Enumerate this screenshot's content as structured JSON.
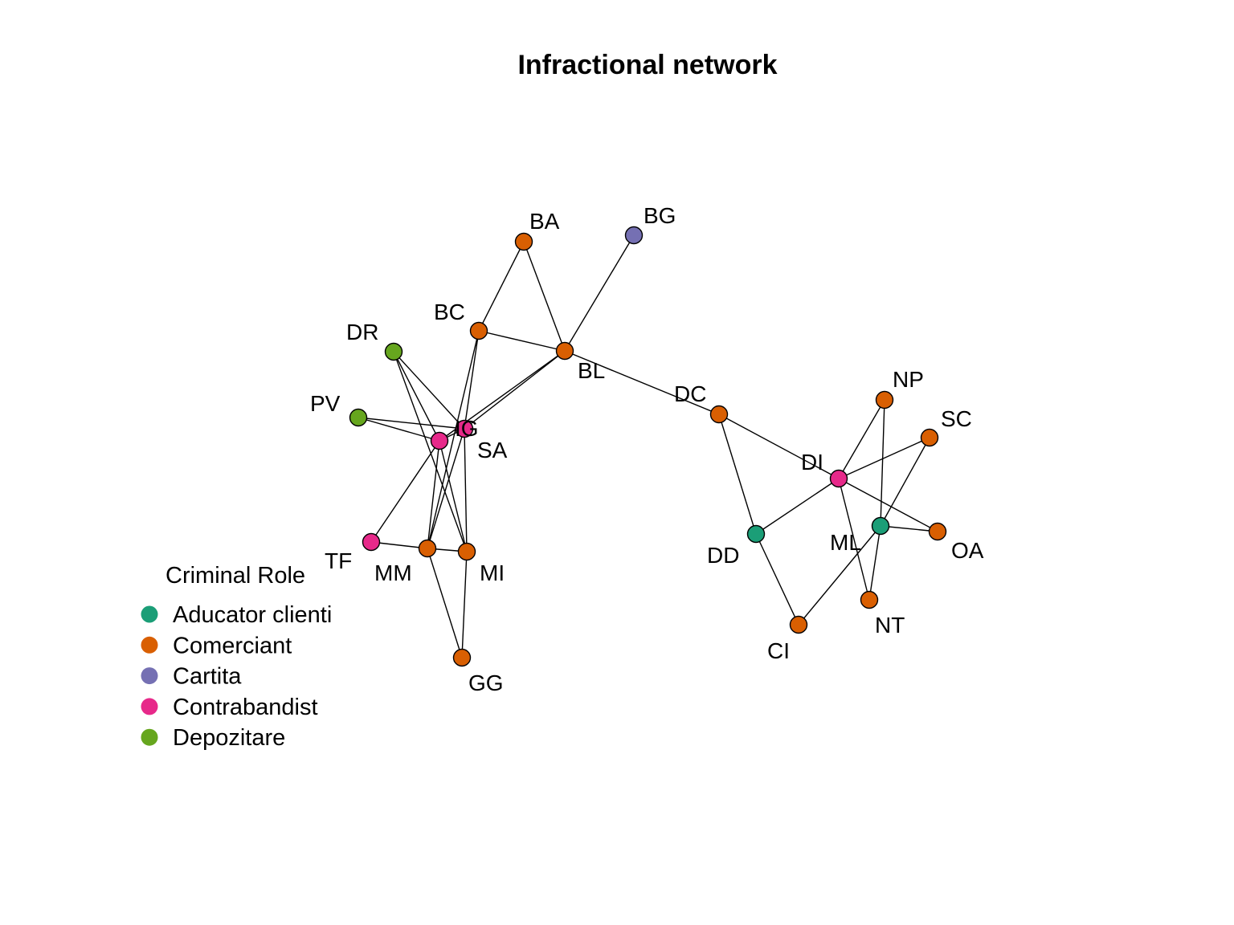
{
  "title": "Infractional network",
  "legend": {
    "title": "Criminal Role",
    "items": [
      {
        "label": "Aducator clienti",
        "color": "#1b9e77"
      },
      {
        "label": "Comerciant",
        "color": "#d95f02"
      },
      {
        "label": "Cartita",
        "color": "#7570b3"
      },
      {
        "label": "Contrabandist",
        "color": "#e7298a"
      },
      {
        "label": "Depozitare",
        "color": "#66a61e"
      }
    ]
  },
  "nodes": [
    {
      "id": "BA",
      "role": "Comerciant"
    },
    {
      "id": "BG",
      "role": "Cartita"
    },
    {
      "id": "BC",
      "role": "Comerciant"
    },
    {
      "id": "BL",
      "role": "Comerciant"
    },
    {
      "id": "DR",
      "role": "Depozitare"
    },
    {
      "id": "PV",
      "role": "Depozitare"
    },
    {
      "id": "IG",
      "role": "Contrabandist"
    },
    {
      "id": "SA",
      "role": "Contrabandist"
    },
    {
      "id": "TF",
      "role": "Contrabandist"
    },
    {
      "id": "MM",
      "role": "Comerciant"
    },
    {
      "id": "MI",
      "role": "Comerciant"
    },
    {
      "id": "GG",
      "role": "Comerciant"
    },
    {
      "id": "DC",
      "role": "Comerciant"
    },
    {
      "id": "DI",
      "role": "Contrabandist"
    },
    {
      "id": "DD",
      "role": "Aducator clienti"
    },
    {
      "id": "CI",
      "role": "Comerciant"
    },
    {
      "id": "ML",
      "role": "Aducator clienti"
    },
    {
      "id": "NP",
      "role": "Comerciant"
    },
    {
      "id": "SC",
      "role": "Comerciant"
    },
    {
      "id": "OA",
      "role": "Comerciant"
    },
    {
      "id": "NT",
      "role": "Comerciant"
    }
  ],
  "edges": [
    [
      "BA",
      "BC"
    ],
    [
      "BA",
      "BL"
    ],
    [
      "BG",
      "BL"
    ],
    [
      "BC",
      "BL"
    ],
    [
      "BC",
      "IG"
    ],
    [
      "BC",
      "MM"
    ],
    [
      "BL",
      "SA"
    ],
    [
      "BL",
      "IG"
    ],
    [
      "BL",
      "DC"
    ],
    [
      "DR",
      "SA"
    ],
    [
      "DR",
      "IG"
    ],
    [
      "DR",
      "MI"
    ],
    [
      "PV",
      "SA"
    ],
    [
      "PV",
      "IG"
    ],
    [
      "SA",
      "IG"
    ],
    [
      "SA",
      "TF"
    ],
    [
      "SA",
      "MM"
    ],
    [
      "SA",
      "MI"
    ],
    [
      "IG",
      "MI"
    ],
    [
      "IG",
      "MM"
    ],
    [
      "TF",
      "MM"
    ],
    [
      "MM",
      "MI"
    ],
    [
      "MM",
      "GG"
    ],
    [
      "MI",
      "GG"
    ],
    [
      "DC",
      "DI"
    ],
    [
      "DC",
      "DD"
    ],
    [
      "DI",
      "DD"
    ],
    [
      "DI",
      "NP"
    ],
    [
      "DI",
      "SC"
    ],
    [
      "DI",
      "OA"
    ],
    [
      "DI",
      "NT"
    ],
    [
      "DD",
      "CI"
    ],
    [
      "CI",
      "ML"
    ],
    [
      "ML",
      "NP"
    ],
    [
      "ML",
      "SC"
    ],
    [
      "ML",
      "OA"
    ],
    [
      "ML",
      "NT"
    ]
  ]
}
